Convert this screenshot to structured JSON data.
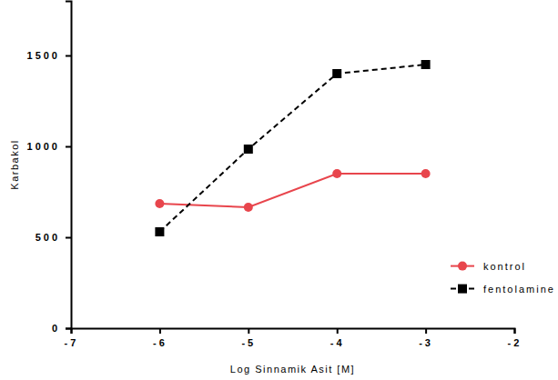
{
  "chart_data": {
    "type": "line",
    "x_label": "Log Sinnamik Asit [M]",
    "y_label": "Karbakol",
    "x": [
      -6,
      -5,
      -4,
      -3
    ],
    "series": [
      {
        "name": "kontrol",
        "color": "#e8454c",
        "marker": "circle",
        "line_style": "solid",
        "values": [
          685,
          665,
          850,
          850
        ]
      },
      {
        "name": "fentolamine",
        "color": "#000000",
        "marker": "square",
        "line_style": "dashed",
        "values": [
          530,
          985,
          1400,
          1450
        ]
      }
    ],
    "xlim": [
      -7,
      -2
    ],
    "xticks": [
      -7,
      -6,
      -5,
      -4,
      -3,
      -2
    ],
    "ylim": [
      0,
      1800
    ],
    "yticks": [
      0,
      500,
      1000,
      1500
    ],
    "grid": false,
    "legend": "right"
  }
}
